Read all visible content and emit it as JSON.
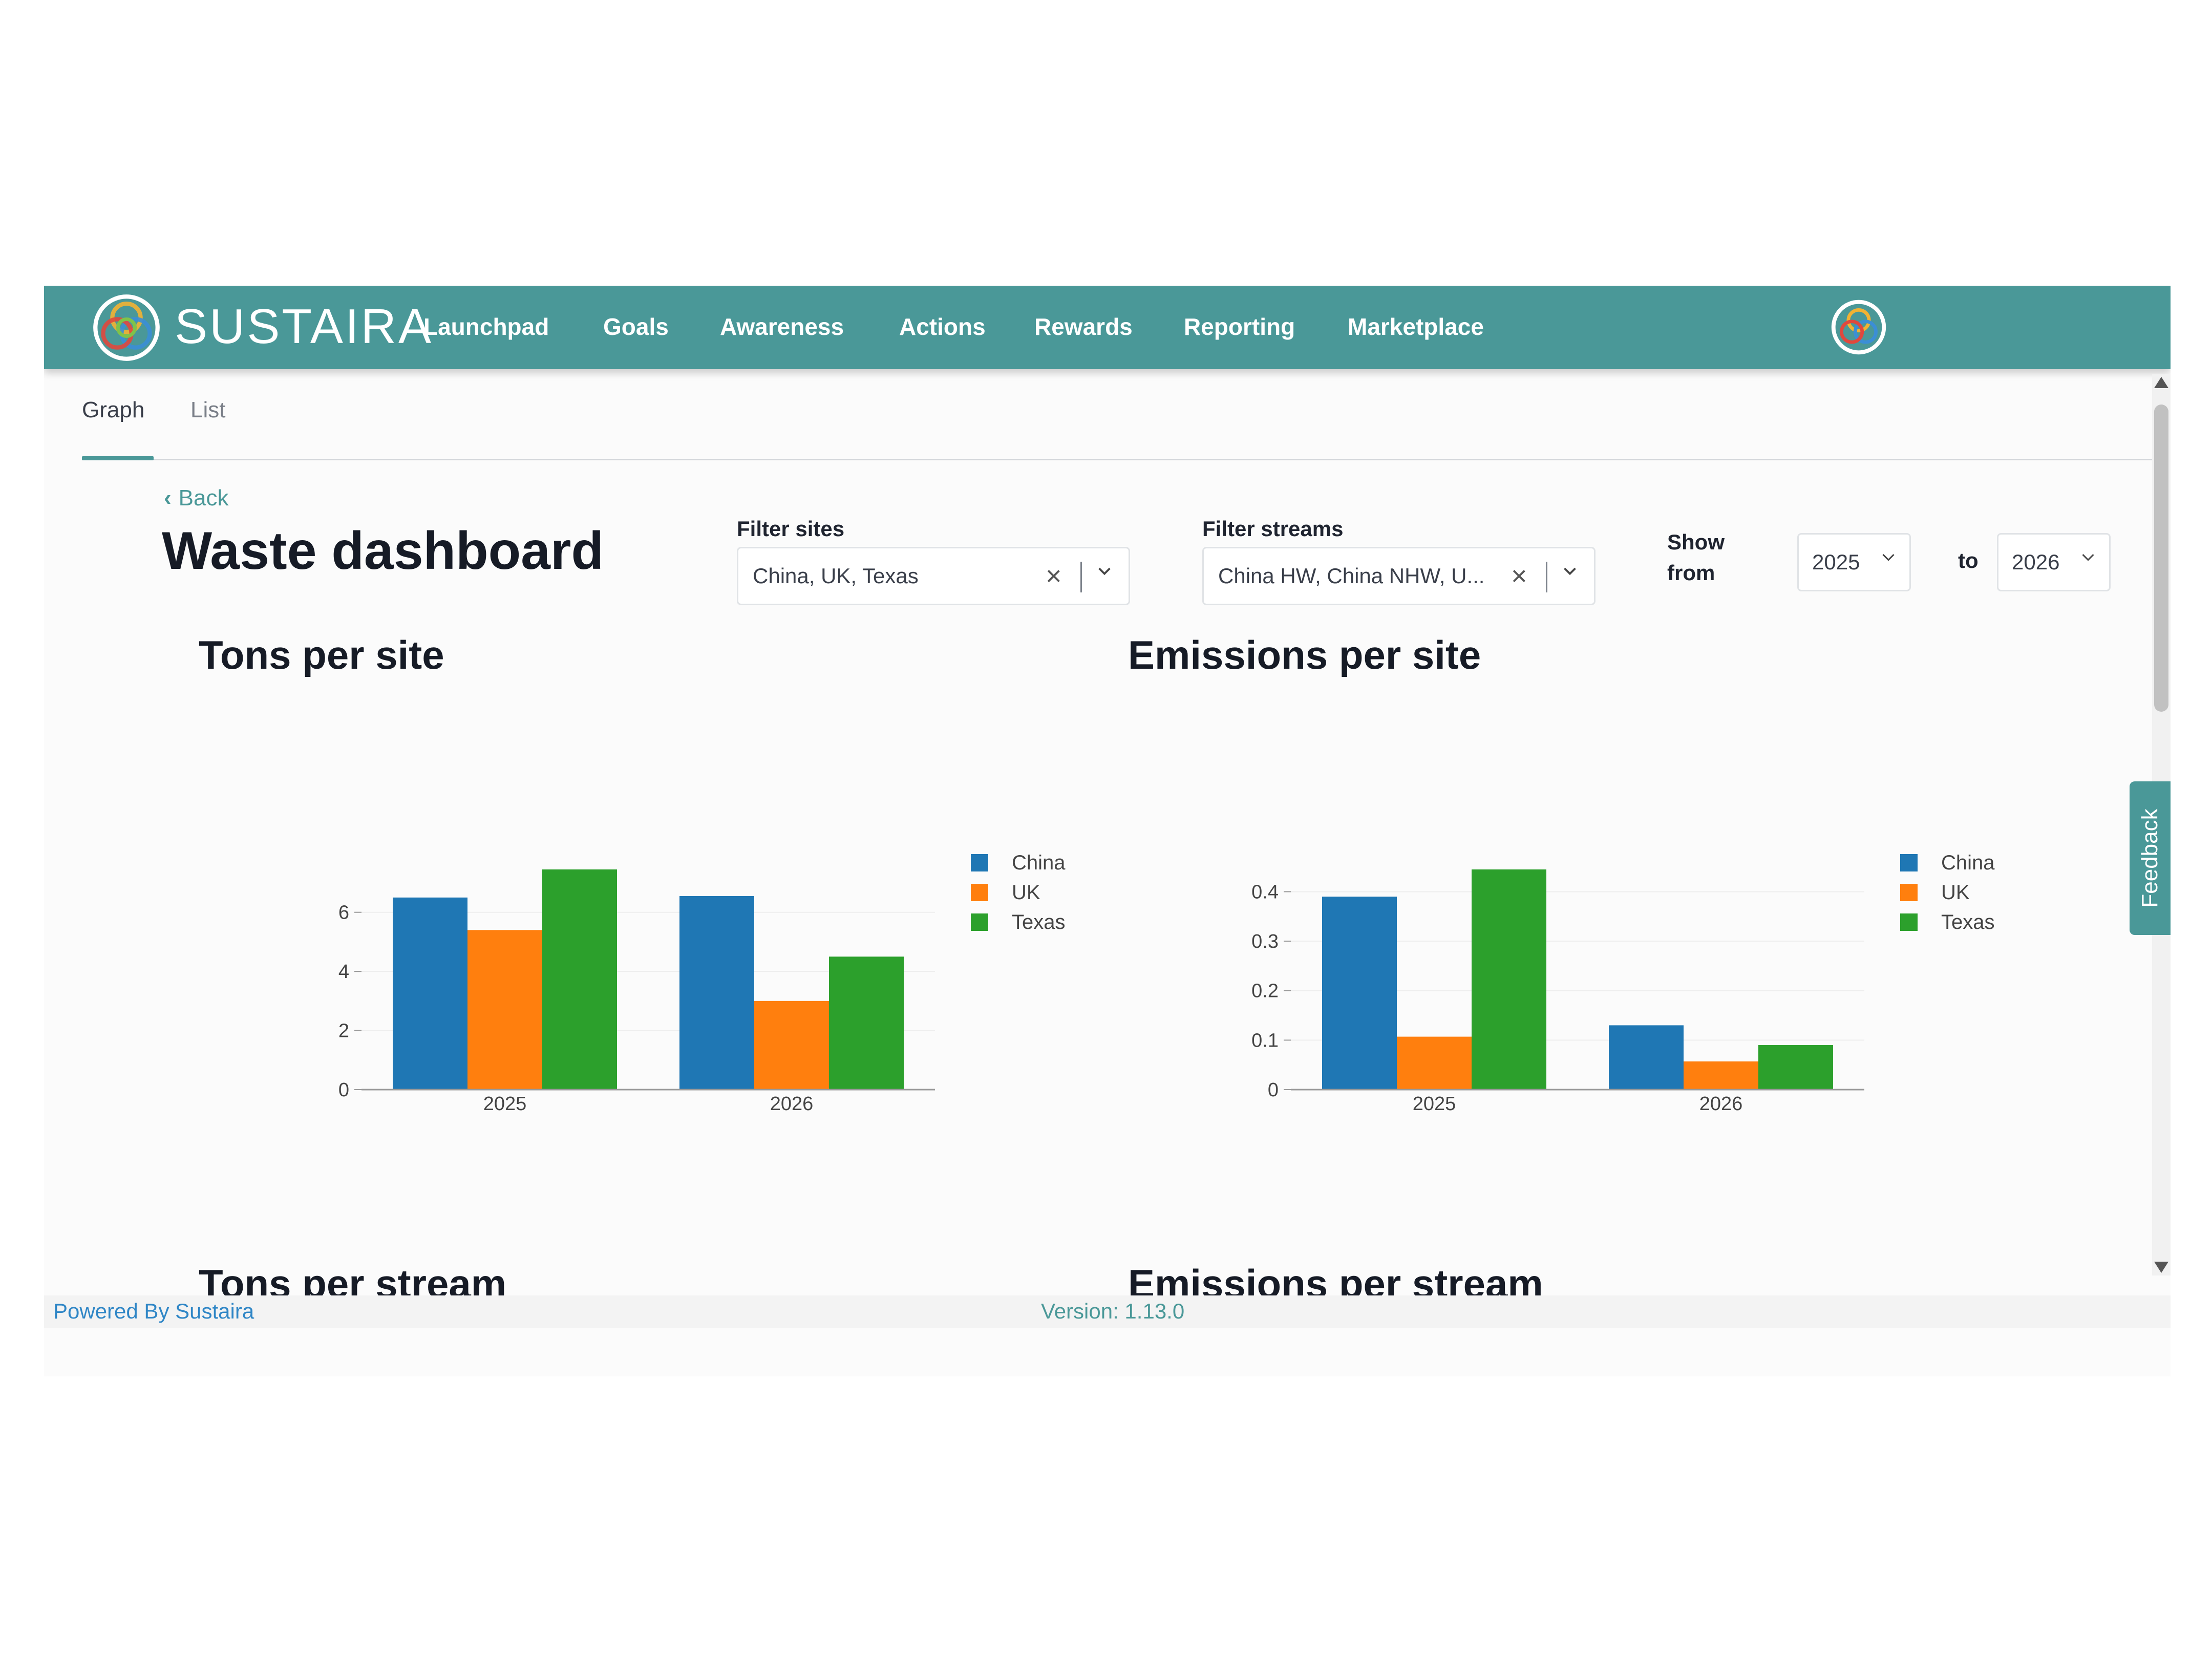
{
  "brand": {
    "name": "SUSTAIRA"
  },
  "nav": {
    "items": [
      "Launchpad",
      "Goals",
      "Awareness",
      "Actions",
      "Rewards",
      "Reporting",
      "Marketplace"
    ]
  },
  "tabs": {
    "items": [
      "Graph",
      "List"
    ],
    "active": "Graph"
  },
  "back": {
    "label": "Back"
  },
  "page": {
    "title": "Waste dashboard"
  },
  "filters": {
    "sites": {
      "label": "Filter sites",
      "value": "China, UK, Texas"
    },
    "streams": {
      "label": "Filter streams",
      "value": "China HW, China NHW, U..."
    },
    "show_from_label_1": "Show",
    "show_from_label_2": "from",
    "from_year": "2025",
    "to_label": "to",
    "to_year": "2026"
  },
  "sections": {
    "tons_per_site": "Tons per site",
    "emissions_per_site": "Emissions per site",
    "tons_per_stream": "Tons per stream",
    "emissions_per_stream": "Emissions per stream"
  },
  "colors": {
    "brand": "#4a9898",
    "china": "#1f77b4",
    "uk": "#ff7f0e",
    "texas": "#2ca02c"
  },
  "chart_data": [
    {
      "type": "bar",
      "title": "Tons per site",
      "categories": [
        "2025",
        "2026"
      ],
      "series": [
        {
          "name": "China",
          "values": [
            6.5,
            6.55
          ]
        },
        {
          "name": "UK",
          "values": [
            5.4,
            3.0
          ]
        },
        {
          "name": "Texas",
          "values": [
            7.45,
            4.5
          ]
        }
      ],
      "ylim": [
        0,
        7.45
      ],
      "yticks": [
        0,
        2,
        4,
        6
      ],
      "grid": true,
      "legend": "right"
    },
    {
      "type": "bar",
      "title": "Emissions per site",
      "categories": [
        "2025",
        "2026"
      ],
      "series": [
        {
          "name": "China",
          "values": [
            0.39,
            0.13
          ]
        },
        {
          "name": "UK",
          "values": [
            0.107,
            0.057
          ]
        },
        {
          "name": "Texas",
          "values": [
            0.445,
            0.09
          ]
        }
      ],
      "ylim": [
        0,
        0.445
      ],
      "yticks": [
        0,
        0.1,
        0.2,
        0.3,
        0.4
      ],
      "grid": true,
      "legend": "right"
    }
  ],
  "footer": {
    "powered_by": "Powered By Sustaira",
    "version": "Version: 1.13.0"
  }
}
